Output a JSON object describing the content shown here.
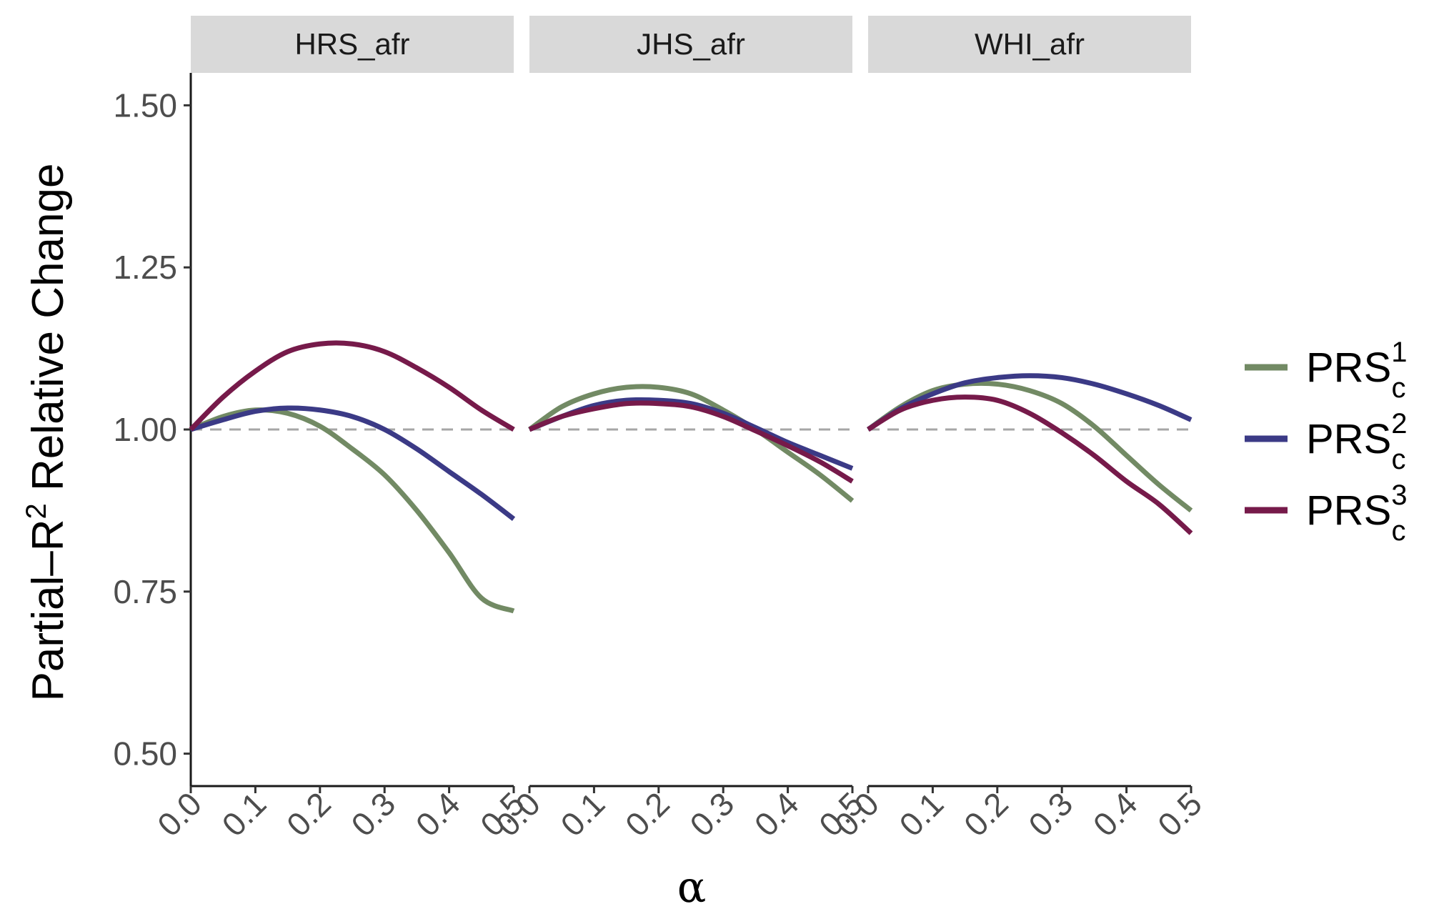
{
  "chart_data": {
    "type": "line",
    "facets": [
      "HRS_afr",
      "JHS_afr",
      "WHI_afr"
    ],
    "xlabel": "α",
    "ylabel": "Partial–R",
    "ylabel_sup": "2",
    "ylabel_rest": " Relative Change",
    "xlim": [
      0,
      0.5
    ],
    "ylim": [
      0.45,
      1.55
    ],
    "x_ticks": [
      "0.0",
      "0.1",
      "0.2",
      "0.3",
      "0.4",
      "0.5"
    ],
    "y_ticks": [
      "0.50",
      "0.75",
      "1.00",
      "1.25",
      "1.50"
    ],
    "reference_line": 1.0,
    "grid": false,
    "legend_position": "right",
    "x": [
      0,
      0.05,
      0.1,
      0.15,
      0.2,
      0.25,
      0.3,
      0.35,
      0.4,
      0.45,
      0.5
    ],
    "series": [
      {
        "name": "PRS",
        "sub": "c",
        "sup": "1",
        "color": "#728a64",
        "panels": {
          "HRS_afr": [
            1.0,
            1.02,
            1.03,
            1.025,
            1.005,
            0.97,
            0.93,
            0.875,
            0.81,
            0.74,
            0.72
          ],
          "JHS_afr": [
            1.0,
            1.035,
            1.055,
            1.065,
            1.065,
            1.055,
            1.03,
            1.0,
            0.965,
            0.93,
            0.89
          ],
          "WHI_afr": [
            1.0,
            1.035,
            1.06,
            1.07,
            1.07,
            1.06,
            1.04,
            1.005,
            0.96,
            0.915,
            0.875
          ]
        }
      },
      {
        "name": "PRS",
        "sub": "c",
        "sup": "2",
        "color": "#3b3a86",
        "panels": {
          "HRS_afr": [
            1.0,
            1.015,
            1.028,
            1.033,
            1.03,
            1.02,
            1.0,
            0.97,
            0.935,
            0.9,
            0.862
          ],
          "JHS_afr": [
            1.0,
            1.02,
            1.037,
            1.045,
            1.045,
            1.04,
            1.025,
            1.003,
            0.98,
            0.96,
            0.94
          ],
          "WHI_afr": [
            1.0,
            1.032,
            1.055,
            1.072,
            1.08,
            1.083,
            1.08,
            1.07,
            1.055,
            1.037,
            1.015
          ]
        }
      },
      {
        "name": "PRS",
        "sub": "c",
        "sup": "3",
        "color": "#761a4a",
        "panels": {
          "HRS_afr": [
            1.0,
            1.05,
            1.09,
            1.12,
            1.132,
            1.132,
            1.12,
            1.095,
            1.065,
            1.03,
            1.0
          ],
          "JHS_afr": [
            1.0,
            1.02,
            1.032,
            1.04,
            1.04,
            1.035,
            1.02,
            0.998,
            0.975,
            0.95,
            0.92
          ],
          "WHI_afr": [
            1.0,
            1.03,
            1.045,
            1.05,
            1.045,
            1.025,
            0.995,
            0.96,
            0.92,
            0.885,
            0.84
          ]
        }
      }
    ]
  }
}
